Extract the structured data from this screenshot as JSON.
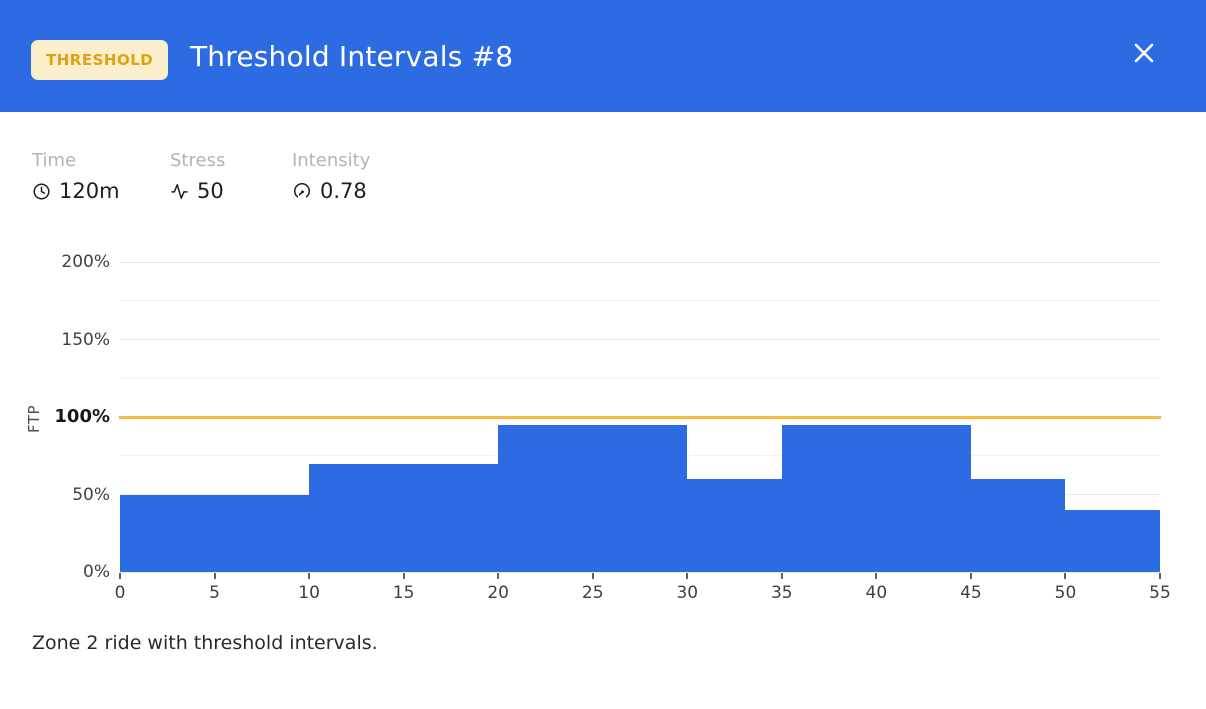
{
  "header": {
    "badge": "THRESHOLD",
    "title": "Threshold Intervals #8"
  },
  "stats": [
    {
      "icon": "clock-icon",
      "label": "Time",
      "value": "120m"
    },
    {
      "icon": "activity-icon",
      "label": "Stress",
      "value": "50"
    },
    {
      "icon": "gauge-icon",
      "label": "Intensity",
      "value": "0.78"
    }
  ],
  "description": "Zone 2 ride with threshold intervals.",
  "colors": {
    "accent_blue": "#2d6be3",
    "badge_bg": "#faeecb",
    "badge_text": "#dfa312",
    "ftp_line": "#f7ba3e",
    "grid_major": "#e8e8eb",
    "grid_minor": "#f3f3f5",
    "label_gray": "#b3b3b8",
    "text_dark": "#1d1e22",
    "axis_text": "#3e4144"
  },
  "chart_data": {
    "type": "bar",
    "title": "",
    "xlabel": "",
    "ylabel": "FTP",
    "x_unit": "minutes",
    "y_unit": "percent of FTP",
    "xlim": [
      0,
      55
    ],
    "ylim": [
      0,
      215
    ],
    "x_ticks": [
      0,
      5,
      10,
      15,
      20,
      25,
      30,
      35,
      40,
      45,
      50,
      55
    ],
    "y_ticks": [
      {
        "pct": 0,
        "label": "0%"
      },
      {
        "pct": 50,
        "label": "50%"
      },
      {
        "pct": 100,
        "label": "100%",
        "bold": true
      },
      {
        "pct": 150,
        "label": "150%"
      },
      {
        "pct": 200,
        "label": "200%"
      }
    ],
    "grid_major_pcts": [
      0,
      50,
      150,
      200
    ],
    "grid_minor_pcts": [
      25,
      75,
      125,
      175
    ],
    "ftp_line_pct": 100,
    "segments": [
      {
        "start": 0,
        "end": 10,
        "pct": 50
      },
      {
        "start": 10,
        "end": 20,
        "pct": 70
      },
      {
        "start": 20,
        "end": 30,
        "pct": 95
      },
      {
        "start": 30,
        "end": 35,
        "pct": 60
      },
      {
        "start": 35,
        "end": 45,
        "pct": 95
      },
      {
        "start": 45,
        "end": 50,
        "pct": 60
      },
      {
        "start": 50,
        "end": 55,
        "pct": 40
      }
    ]
  }
}
